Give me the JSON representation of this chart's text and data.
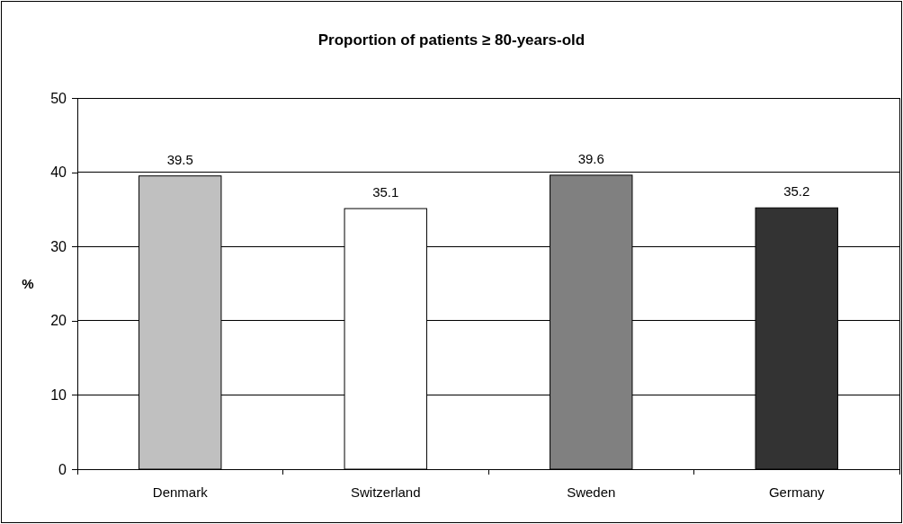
{
  "chart_data": {
    "type": "bar",
    "title": "Proportion of patients ≥ 80-years-old",
    "ylabel": "%",
    "categories": [
      "Denmark",
      "Switzerland",
      "Sweden",
      "Germany"
    ],
    "values": [
      39.5,
      35.1,
      39.6,
      35.2
    ],
    "colors": [
      "#c0c0c0",
      "#ffffff",
      "#808080",
      "#333333"
    ],
    "ylim": [
      0,
      50
    ],
    "yticks": [
      0,
      10,
      20,
      30,
      40,
      50
    ],
    "grid": "y",
    "data_labels": true
  }
}
